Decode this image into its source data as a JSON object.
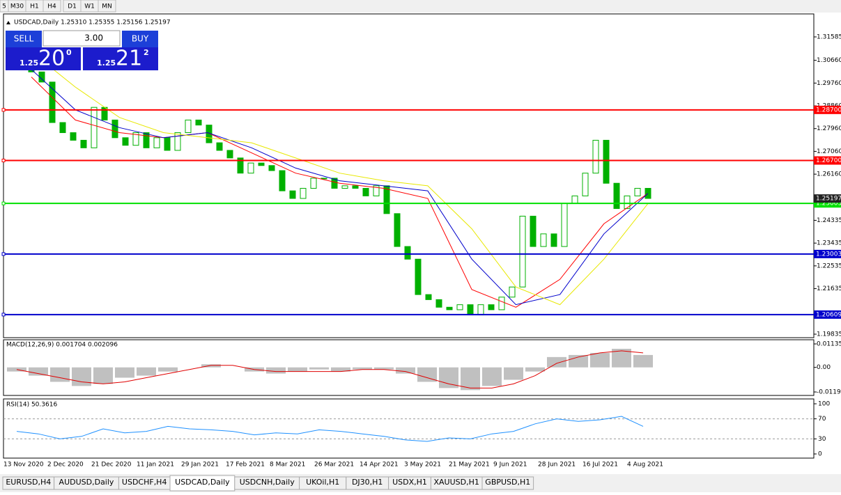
{
  "toolbar": {
    "timeframes": [
      "5",
      "M30",
      "H1",
      "H4",
      "D1",
      "W1",
      "MN"
    ]
  },
  "header": "USDCAD,Daily 1.25310 1.25355 1.25156 1.25197",
  "trade_panel": {
    "sell": "SELL",
    "buy": "BUY",
    "lots": "3.00",
    "sell_small": "1.25",
    "sell_big": "20",
    "sell_sup": "0",
    "buy_small": "1.25",
    "buy_big": "21",
    "buy_sup": "2"
  },
  "chart_data": [
    {
      "type": "candlestick",
      "ylim": [
        1.19697,
        1.32493
      ],
      "yticks": [
        {
          "value": 1.31585,
          "label": "1.31585"
        },
        {
          "value": 1.3066,
          "label": "1.30660"
        },
        {
          "value": 1.2976,
          "label": "1.29760"
        },
        {
          "value": 1.2886,
          "label": "1.28860"
        },
        {
          "value": 1.2796,
          "label": "1.27960"
        },
        {
          "value": 1.2706,
          "label": "1.27060"
        },
        {
          "value": 1.2616,
          "label": "1.26160"
        },
        {
          "value": 1.24335,
          "label": "1.24335"
        },
        {
          "value": 1.23435,
          "label": "1.23435"
        },
        {
          "value": 1.22535,
          "label": "1.22535"
        },
        {
          "value": 1.21635,
          "label": "1.21635"
        },
        {
          "value": 1.19835,
          "label": "1.19835"
        }
      ],
      "current_price": {
        "value": 1.25197,
        "label": "1.25197"
      },
      "levels": [
        {
          "value": 1.287,
          "label": "1.28700",
          "color": "#ff0000"
        },
        {
          "value": 1.267,
          "label": "1.26700",
          "color": "#ff0000"
        },
        {
          "value": 1.25003,
          "label": "1.25003",
          "color": "#00e000"
        },
        {
          "value": 1.23003,
          "label": "1.23003",
          "color": "#0000cc"
        },
        {
          "value": 1.20609,
          "label": "1.20609",
          "color": "#0000cc"
        }
      ],
      "open": [
        1.306,
        1.302,
        1.298,
        1.282,
        1.278,
        1.275,
        1.272,
        1.288,
        1.283,
        1.276,
        1.273,
        1.278,
        1.272,
        1.276,
        1.271,
        1.278,
        1.283,
        1.281,
        1.274,
        1.271,
        1.268,
        1.262,
        1.266,
        1.265,
        1.263,
        1.255,
        1.252,
        1.256,
        1.26,
        1.26,
        1.256,
        1.257,
        1.256,
        1.253,
        1.257,
        1.246,
        1.233,
        1.228,
        1.214,
        1.212,
        1.209,
        1.208,
        1.21,
        1.206,
        1.21,
        1.208,
        1.213,
        1.217,
        1.245,
        1.233,
        1.238,
        1.233,
        1.25,
        1.253,
        1.262,
        1.275,
        1.258,
        1.248,
        1.253,
        1.256
      ],
      "close": [
        1.302,
        1.298,
        1.282,
        1.278,
        1.275,
        1.272,
        1.288,
        1.283,
        1.276,
        1.273,
        1.278,
        1.272,
        1.276,
        1.271,
        1.278,
        1.283,
        1.281,
        1.274,
        1.271,
        1.268,
        1.262,
        1.266,
        1.265,
        1.263,
        1.255,
        1.252,
        1.256,
        1.26,
        1.26,
        1.256,
        1.257,
        1.256,
        1.253,
        1.257,
        1.246,
        1.233,
        1.228,
        1.214,
        1.212,
        1.209,
        1.208,
        1.21,
        1.206,
        1.21,
        1.208,
        1.213,
        1.217,
        1.245,
        1.233,
        1.238,
        1.233,
        1.25,
        1.253,
        1.262,
        1.275,
        1.258,
        1.248,
        1.253,
        1.256,
        1.252
      ],
      "candle_color": "#00b000",
      "series": [
        {
          "color": "#ff0000",
          "values": [
            1.3,
            1.283,
            1.278,
            1.276,
            1.278,
            1.27,
            1.262,
            1.258,
            1.256,
            1.252,
            1.216,
            1.209,
            1.22,
            1.242,
            1.254
          ]
        },
        {
          "color": "#0000cc",
          "values": [
            1.303,
            1.287,
            1.28,
            1.276,
            1.278,
            1.272,
            1.264,
            1.259,
            1.257,
            1.255,
            1.228,
            1.21,
            1.214,
            1.238,
            1.254
          ]
        },
        {
          "color": "#e8e800",
          "values": [
            1.31,
            1.296,
            1.284,
            1.278,
            1.276,
            1.274,
            1.268,
            1.262,
            1.259,
            1.257,
            1.24,
            1.217,
            1.21,
            1.228,
            1.25
          ]
        }
      ],
      "dates": [
        "13 Nov 2020",
        "2 Dec 2020",
        "21 Dec 2020",
        "11 Jan 2021",
        "29 Jan 2021",
        "17 Feb 2021",
        "8 Mar 2021",
        "26 Mar 2021",
        "14 Apr 2021",
        "3 May 2021",
        "21 May 2021",
        "9 Jun 2021",
        "28 Jun 2021",
        "16 Jul 2021",
        "4 Aug 2021"
      ]
    },
    {
      "type": "macd",
      "title": "MACD(12,26,9) 0.001704 0.002096",
      "ylim": [
        -0.01358,
        0.01337
      ],
      "yticks": [
        {
          "value": 0.01135,
          "label": "0.01135"
        },
        {
          "value": 0,
          "label": "0.00"
        },
        {
          "value": -0.0119,
          "label": "-0.01190"
        }
      ],
      "values": [
        -0.002,
        -0.004,
        -0.007,
        -0.009,
        -0.008,
        -0.005,
        -0.004,
        -0.002,
        0,
        0.0015,
        0,
        -0.002,
        -0.003,
        -0.002,
        -0.001,
        -0.002,
        -0.001,
        -0.001,
        -0.003,
        -0.007,
        -0.01,
        -0.011,
        -0.009,
        -0.006,
        -0.002,
        0.005,
        0.006,
        0.007,
        0.009,
        0.006
      ],
      "signal": [
        -0.001,
        -0.003,
        -0.005,
        -0.007,
        -0.008,
        -0.007,
        -0.005,
        -0.003,
        -0.001,
        0.001,
        0.001,
        -0.001,
        -0.002,
        -0.002,
        -0.002,
        -0.002,
        -0.001,
        -0.001,
        -0.002,
        -0.005,
        -0.008,
        -0.01,
        -0.01,
        -0.008,
        -0.004,
        0.002,
        0.005,
        0.007,
        0.008,
        0.007
      ],
      "color": "#c0c0c0",
      "signal_color": "#e00000"
    },
    {
      "type": "rsi",
      "title": "RSI(14) 50.3616",
      "ylim": [
        -8.3,
        109.7
      ],
      "yticks": [
        100,
        70,
        30,
        0
      ],
      "levels": [
        70,
        30
      ],
      "values": [
        45,
        40,
        30,
        35,
        50,
        42,
        45,
        55,
        50,
        48,
        45,
        38,
        42,
        40,
        48,
        45,
        40,
        35,
        28,
        25,
        32,
        30,
        40,
        45,
        60,
        70,
        65,
        68,
        75,
        55
      ],
      "color": "#1e90ff"
    }
  ],
  "tabs": [
    "EURUSD,H4",
    "AUDUSD,Daily",
    "USDCHF,H4",
    "USDCAD,Daily",
    "USDCNH,Daily",
    "UKOil,H1",
    "DJ30,H1",
    "USDX,H1",
    "XAUUSD,H1",
    "GBPUSD,H1"
  ],
  "active_tab": 3
}
